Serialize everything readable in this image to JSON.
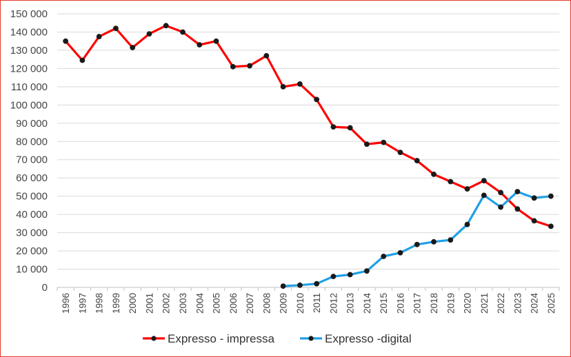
{
  "chart_data": {
    "type": "line",
    "title": "",
    "xlabel": "",
    "ylabel": "",
    "ylim": [
      0,
      150000
    ],
    "yticks": [
      0,
      10000,
      20000,
      30000,
      40000,
      50000,
      60000,
      70000,
      80000,
      90000,
      100000,
      110000,
      120000,
      130000,
      140000,
      150000
    ],
    "ytick_labels": [
      "0",
      "10 000",
      "20 000",
      "30 000",
      "40 000",
      "50 000",
      "60 000",
      "70 000",
      "80 000",
      "90 000",
      "100 000",
      "110 000",
      "120 000",
      "130 000",
      "140 000",
      "150 000"
    ],
    "grid": true,
    "legend_position": "bottom",
    "categories": [
      "1996",
      "1997",
      "1998",
      "1999",
      "2000",
      "2001",
      "2002",
      "2003",
      "2004",
      "2005",
      "2006",
      "2007",
      "2008",
      "2009",
      "2010",
      "2011",
      "2012",
      "2013",
      "2014",
      "2015",
      "2016",
      "2017",
      "2018",
      "2019",
      "2020",
      "2021",
      "2022",
      "2023",
      "2024",
      "2025"
    ],
    "series": [
      {
        "name": "Expresso - impressa",
        "color": "#ff0000",
        "marker_color": "#1a1a1a",
        "values": [
          135000,
          124500,
          137500,
          142000,
          131500,
          139000,
          143500,
          140000,
          133000,
          135000,
          121000,
          121500,
          127000,
          110000,
          111500,
          103000,
          88000,
          87500,
          78500,
          79500,
          74000,
          69500,
          62000,
          58000,
          54000,
          58500,
          52000,
          43000,
          36500,
          33500
        ]
      },
      {
        "name": "Expresso -digital",
        "color": "#1ea0e6",
        "marker_color": "#1a1a1a",
        "values": [
          null,
          null,
          null,
          null,
          null,
          null,
          null,
          null,
          null,
          null,
          null,
          null,
          null,
          700,
          1200,
          2000,
          6000,
          7000,
          9000,
          17000,
          19000,
          23500,
          25000,
          26000,
          34500,
          50500,
          44000,
          52500,
          49000,
          50000
        ]
      }
    ]
  }
}
